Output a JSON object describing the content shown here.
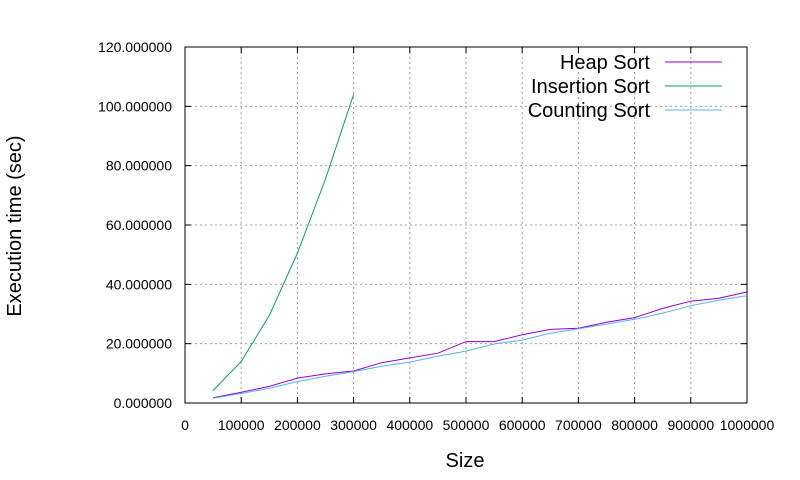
{
  "chart_data": {
    "type": "line",
    "xlabel": "Size",
    "ylabel": "Execution time (sec)",
    "xlim": [
      0,
      1000000
    ],
    "ylim": [
      0,
      120
    ],
    "grid": true,
    "legend_position": "top-right",
    "x_ticks": [
      0,
      100000,
      200000,
      300000,
      400000,
      500000,
      600000,
      700000,
      800000,
      900000,
      1000000
    ],
    "x_tick_labels": [
      "0",
      "100000",
      "200000",
      "300000",
      "400000",
      "500000",
      "600000",
      "700000",
      "800000",
      "900000",
      "1000000"
    ],
    "y_ticks": [
      0,
      20,
      40,
      60,
      80,
      100,
      120
    ],
    "y_tick_labels": [
      "0.000000",
      "20.000000",
      "40.000000",
      "60.000000",
      "80.000000",
      "100.000000",
      "120.000000"
    ],
    "series": [
      {
        "name": "Heap Sort",
        "color": "#9400d3",
        "x": [
          50000,
          100000,
          150000,
          200000,
          250000,
          300000,
          350000,
          400000,
          450000,
          500000,
          550000,
          600000,
          650000,
          700000,
          750000,
          800000,
          850000,
          900000,
          950000,
          1000000
        ],
        "y": [
          1.8,
          3.6,
          5.6,
          8.4,
          9.8,
          10.8,
          13.6,
          15.2,
          16.8,
          20.7,
          20.7,
          23.0,
          24.8,
          25.2,
          27.2,
          28.8,
          31.9,
          34.3,
          35.3,
          37.4
        ]
      },
      {
        "name": "Insertion Sort",
        "color": "#009e73",
        "x": [
          50000,
          100000,
          150000,
          200000,
          250000,
          300000
        ],
        "y": [
          4.2,
          14.0,
          29.5,
          50.5,
          75.5,
          104.0
        ]
      },
      {
        "name": "Counting Sort",
        "color": "#56b4e9",
        "x": [
          50000,
          100000,
          150000,
          200000,
          250000,
          300000,
          350000,
          400000,
          450000,
          500000,
          550000,
          600000,
          650000,
          700000,
          750000,
          800000,
          850000,
          900000,
          950000,
          1000000
        ],
        "y": [
          1.6,
          3.2,
          5.0,
          7.2,
          9.0,
          10.6,
          12.4,
          13.8,
          15.8,
          17.5,
          19.9,
          21.2,
          23.5,
          25.0,
          26.6,
          28.2,
          30.3,
          32.8,
          34.7,
          36.2
        ]
      }
    ]
  }
}
